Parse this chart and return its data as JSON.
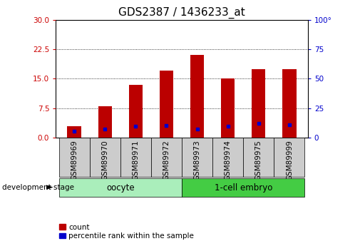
{
  "title": "GDS2387 / 1436233_at",
  "categories": [
    "GSM89969",
    "GSM89970",
    "GSM89971",
    "GSM89972",
    "GSM89973",
    "GSM89974",
    "GSM89975",
    "GSM89999"
  ],
  "count_values": [
    3.0,
    8.0,
    13.5,
    17.0,
    21.0,
    15.0,
    17.5,
    17.5
  ],
  "percentile_values": [
    5.5,
    7.5,
    10.0,
    10.5,
    7.5,
    10.0,
    12.0,
    11.0
  ],
  "left_ylim": [
    0,
    30
  ],
  "right_ylim": [
    0,
    100
  ],
  "left_yticks": [
    0,
    7.5,
    15,
    22.5,
    30
  ],
  "right_yticks": [
    0,
    25,
    50,
    75,
    100
  ],
  "bar_color": "#bb0000",
  "marker_color": "#0000cc",
  "bar_width": 0.45,
  "left_axis_color": "#cc0000",
  "right_axis_color": "#0000cc",
  "plot_bg_color": "#ffffff",
  "title_fontsize": 11,
  "tick_fontsize": 7.5,
  "group1_color": "#aaeebb",
  "group2_color": "#44cc44",
  "gray_box_color": "#cccccc"
}
